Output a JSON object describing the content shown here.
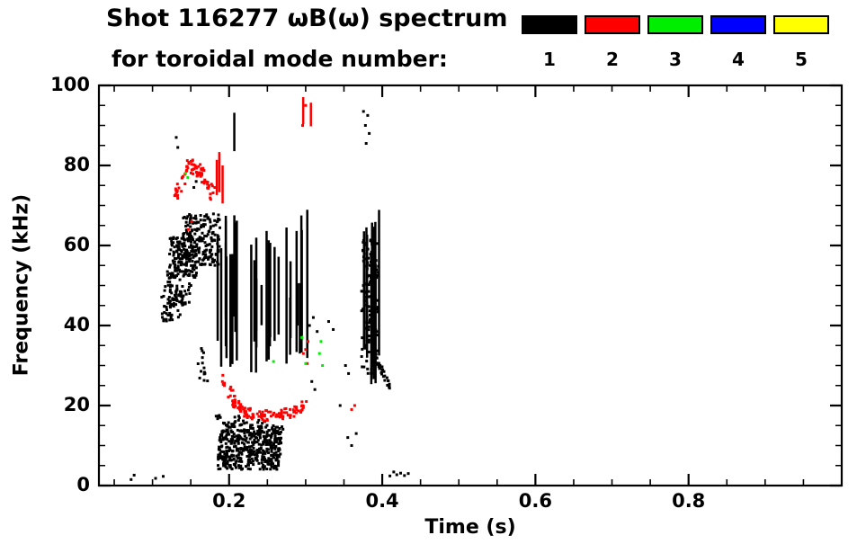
{
  "header": {
    "title_line1": "Shot 116277 ωB(ω) spectrum",
    "title_line2": "for toroidal mode number:"
  },
  "legend": {
    "modes": [
      {
        "label": "1",
        "color": "#000000"
      },
      {
        "label": "2",
        "color": "#ff0000"
      },
      {
        "label": "3",
        "color": "#00ee00"
      },
      {
        "label": "4",
        "color": "#0000ff"
      },
      {
        "label": "5",
        "color": "#ffff00"
      }
    ]
  },
  "chart_data": {
    "type": "scatter",
    "title": "Shot 116277 ωB(ω) spectrum for toroidal mode number: 1 2 3 4 5",
    "xlabel": "Time (s)",
    "ylabel": "Frequency (kHz)",
    "xlim": [
      0.03,
      1.0
    ],
    "ylim": [
      0,
      100
    ],
    "grid": false,
    "legend_position": "top-right",
    "x_ticks": [
      {
        "v": 0.2,
        "label": "0.2"
      },
      {
        "v": 0.4,
        "label": "0.4"
      },
      {
        "v": 0.6,
        "label": "0.6"
      },
      {
        "v": 0.8,
        "label": "0.8"
      }
    ],
    "x_minor_step": 0.05,
    "y_ticks": [
      {
        "v": 0,
        "label": "0"
      },
      {
        "v": 20,
        "label": "20"
      },
      {
        "v": 40,
        "label": "40"
      },
      {
        "v": 60,
        "label": "60"
      },
      {
        "v": 80,
        "label": "80"
      },
      {
        "v": 100,
        "label": "100"
      }
    ],
    "y_minor_step": 5,
    "series": [
      {
        "name": "mode-1",
        "color": "#000000",
        "specs": [
          {
            "type": "points",
            "pts": [
              [
                0.072,
                1.5
              ],
              [
                0.076,
                2.6
              ],
              [
                0.104,
                1.8
              ],
              [
                0.114,
                2.3
              ],
              [
                0.131,
                87
              ],
              [
                0.133,
                84.5
              ],
              [
                0.154,
                74.5
              ],
              [
                0.157,
                76
              ],
              [
                0.41,
                2.4
              ],
              [
                0.415,
                3.4
              ],
              [
                0.419,
                2.7
              ],
              [
                0.424,
                3.1
              ],
              [
                0.429,
                2.5
              ],
              [
                0.434,
                3.0
              ],
              [
                0.305,
                40
              ],
              [
                0.31,
                42
              ],
              [
                0.315,
                38.5
              ],
              [
                0.308,
                26
              ],
              [
                0.312,
                24
              ],
              [
                0.33,
                41
              ],
              [
                0.336,
                39
              ],
              [
                0.355,
                12
              ],
              [
                0.36,
                10
              ],
              [
                0.366,
                13
              ],
              [
                0.345,
                20
              ],
              [
                0.352,
                30
              ],
              [
                0.356,
                28
              ]
            ]
          },
          {
            "type": "blob",
            "t": [
              0.112,
              0.14
            ],
            "f": [
              41,
              50
            ],
            "n": 60
          },
          {
            "type": "blob",
            "t": [
              0.118,
              0.152
            ],
            "f": [
              45,
              54
            ],
            "n": 55
          },
          {
            "type": "blob",
            "t": [
              0.158,
              0.172
            ],
            "f": [
              26,
              35
            ],
            "n": 14
          },
          {
            "type": "blob",
            "t": [
              0.122,
              0.158
            ],
            "f": [
              52,
              63
            ],
            "n": 150
          },
          {
            "type": "blob",
            "t": [
              0.14,
              0.188
            ],
            "f": [
              55,
              68
            ],
            "n": 190
          },
          {
            "type": "streaks",
            "t": [
              0.185,
              0.215
            ],
            "n": 11,
            "fbase": [
              28,
              44
            ],
            "ftop": [
              56,
              71
            ]
          },
          {
            "type": "streaks",
            "t": [
              0.215,
              0.298
            ],
            "n": 18,
            "fbase": [
              28,
              42
            ],
            "ftop": [
              46,
              66
            ]
          },
          {
            "type": "streaks",
            "t": [
              0.287,
              0.304
            ],
            "n": 4,
            "fbase": [
              30,
              40
            ],
            "ftop": [
              62,
              74
            ]
          },
          {
            "type": "streaks",
            "t": [
              0.205,
              0.212
            ],
            "n": 1,
            "fbase": [
              83,
              85
            ],
            "ftop": [
              93,
              96
            ]
          },
          {
            "type": "blob",
            "t": [
              0.185,
              0.268
            ],
            "f": [
              4,
              14
            ],
            "n": 430
          },
          {
            "type": "curve",
            "pts": [
              [
                0.183,
                17
              ],
              [
                0.198,
                14.5
              ],
              [
                0.212,
                16.5
              ],
              [
                0.227,
                13.5
              ],
              [
                0.243,
                15.5
              ],
              [
                0.258,
                13.5
              ],
              [
                0.268,
                14.5
              ]
            ],
            "n": 70,
            "jt": 0.004,
            "jf": 1.6
          },
          {
            "type": "streaks",
            "t": [
              0.371,
              0.397
            ],
            "n": 12,
            "fbase": [
              25,
              35
            ],
            "ftop": [
              55,
              70
            ]
          },
          {
            "type": "blob",
            "t": [
              0.373,
              0.395
            ],
            "f": [
              28,
              62
            ],
            "n": 130
          },
          {
            "type": "points",
            "pts": [
              [
                0.378,
                90
              ],
              [
                0.381,
                92.5
              ],
              [
                0.383,
                88
              ],
              [
                0.379,
                85.5
              ],
              [
                0.3755,
                93.5
              ]
            ]
          },
          {
            "type": "curve",
            "pts": [
              [
                0.392,
                32
              ],
              [
                0.401,
                27.5
              ],
              [
                0.412,
                24.5
              ]
            ],
            "n": 26,
            "jt": 0.003,
            "jf": 1.2
          }
        ]
      },
      {
        "name": "mode-2",
        "color": "#ff0000",
        "specs": [
          {
            "type": "curve",
            "pts": [
              [
                0.127,
                71
              ],
              [
                0.139,
                76
              ],
              [
                0.15,
                80
              ],
              [
                0.161,
                79
              ],
              [
                0.171,
                75.5
              ],
              [
                0.179,
                73
              ]
            ],
            "n": 75,
            "jt": 0.0035,
            "jf": 1.8
          },
          {
            "type": "streaks",
            "t": [
              0.176,
              0.192
            ],
            "n": 3,
            "fbase": [
              70,
              74
            ],
            "ftop": [
              80,
              86
            ]
          },
          {
            "type": "curve",
            "pts": [
              [
                0.185,
                30
              ],
              [
                0.196,
                24.5
              ],
              [
                0.207,
                21
              ],
              [
                0.221,
                18.5
              ],
              [
                0.24,
                17.5
              ],
              [
                0.259,
                17.5
              ],
              [
                0.276,
                18
              ],
              [
                0.291,
                19
              ],
              [
                0.301,
                21
              ]
            ],
            "n": 120,
            "jt": 0.0035,
            "jf": 1.3
          },
          {
            "type": "streaks",
            "t": [
              0.294,
              0.309
            ],
            "n": 2,
            "fbase": [
              88,
              91
            ],
            "ftop": [
              95,
              98
            ]
          },
          {
            "type": "points",
            "pts": [
              [
                0.3,
                34
              ],
              [
                0.303,
                36
              ],
              [
                0.297,
                33
              ],
              [
                0.302,
                30.5
              ],
              [
                0.36,
                19
              ],
              [
                0.364,
                20
              ],
              [
                0.147,
                64
              ],
              [
                0.151,
                66
              ],
              [
                0.296,
                90
              ],
              [
                0.3,
                95
              ]
            ]
          }
        ]
      },
      {
        "name": "mode-3",
        "color": "#00ee00",
        "specs": [
          {
            "type": "points",
            "pts": [
              [
                0.143,
                78
              ],
              [
                0.146,
                77
              ],
              [
                0.295,
                37
              ],
              [
                0.318,
                33
              ],
              [
                0.322,
                30
              ],
              [
                0.32,
                36
              ],
              [
                0.258,
                31
              ],
              [
                0.3,
                30.5
              ]
            ]
          }
        ]
      },
      {
        "name": "mode-4",
        "color": "#0000ff",
        "specs": []
      },
      {
        "name": "mode-5",
        "color": "#ffff00",
        "specs": []
      }
    ]
  }
}
